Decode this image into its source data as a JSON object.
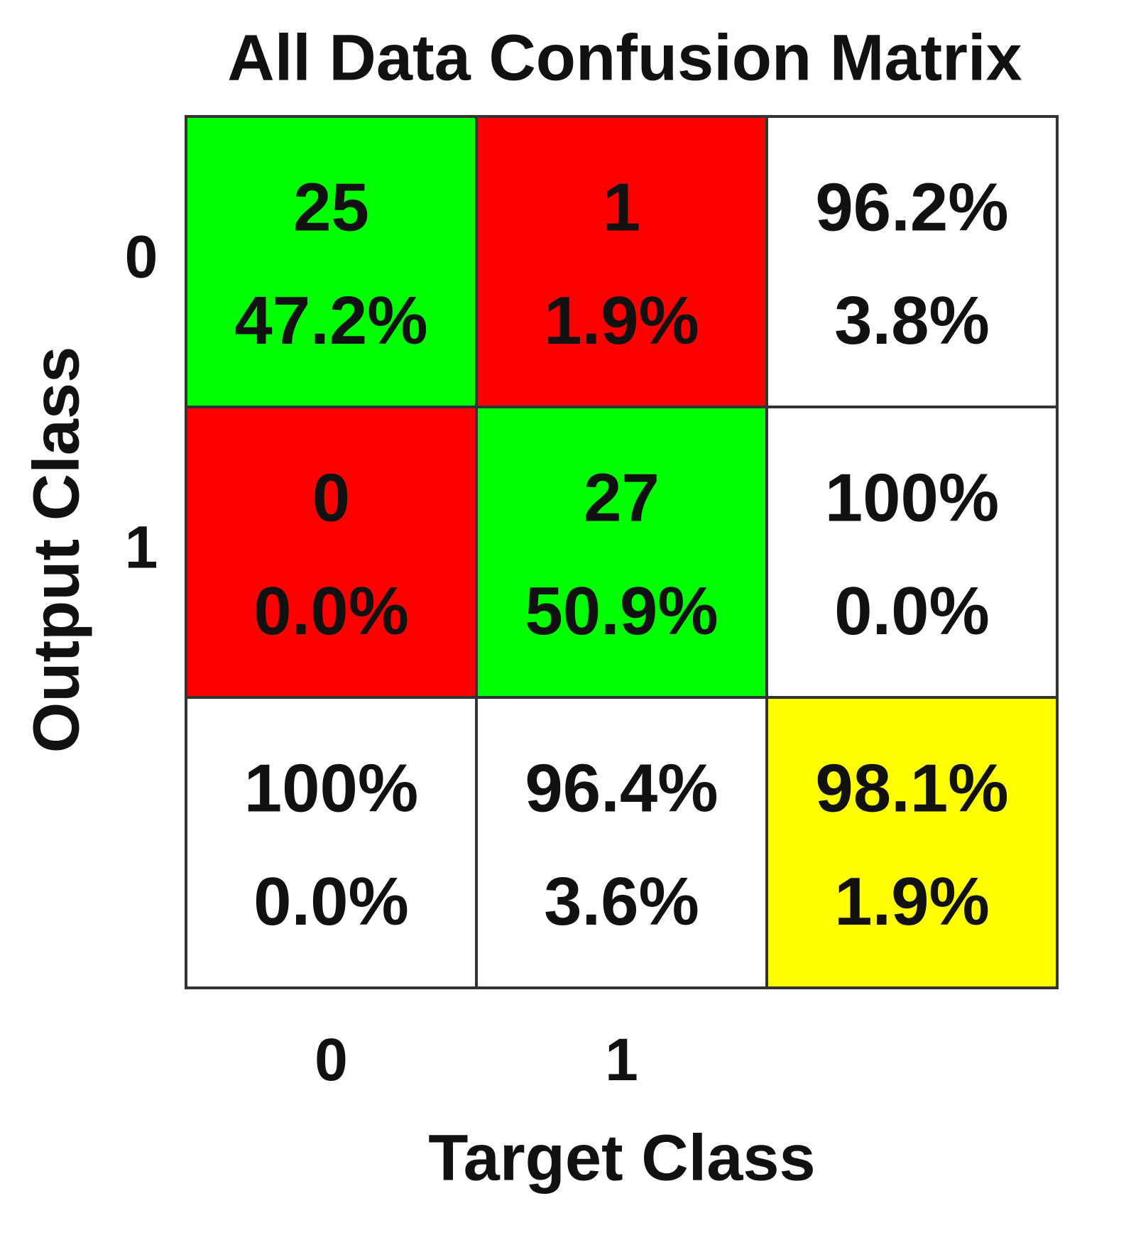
{
  "chart_data": {
    "type": "confusion_matrix",
    "title": "All Data Confusion Matrix",
    "xlabel": "Target Class",
    "ylabel": "Output Class",
    "x_categories": [
      "0",
      "1"
    ],
    "y_categories": [
      "0",
      "1"
    ],
    "counts": [
      [
        25,
        1
      ],
      [
        0,
        27
      ]
    ],
    "percents": [
      [
        47.2,
        1.9
      ],
      [
        0,
        50.9
      ]
    ],
    "percent_labels": [
      [
        "47.2%",
        "1.9%"
      ],
      [
        "0.0%",
        "50.9%"
      ]
    ],
    "row_summary": {
      "correct": [
        96.2,
        100
      ],
      "correct_labels": [
        "96.2%",
        "100%"
      ],
      "error": [
        3.8,
        0
      ],
      "error_labels": [
        "3.8%",
        "0.0%"
      ]
    },
    "col_summary": {
      "correct": [
        100,
        96.4
      ],
      "correct_labels": [
        "100%",
        "96.4%"
      ],
      "error": [
        0,
        3.6
      ],
      "error_labels": [
        "0.0%",
        "3.6%"
      ]
    },
    "overall": {
      "correct": 98.1,
      "correct_label": "98.1%",
      "error": 1.9,
      "error_label": "1.9%"
    },
    "correct_color": "#00ff00",
    "error_color": "#ff0000",
    "summary_color": "#ffffff",
    "overall_color": "#ffff00"
  }
}
